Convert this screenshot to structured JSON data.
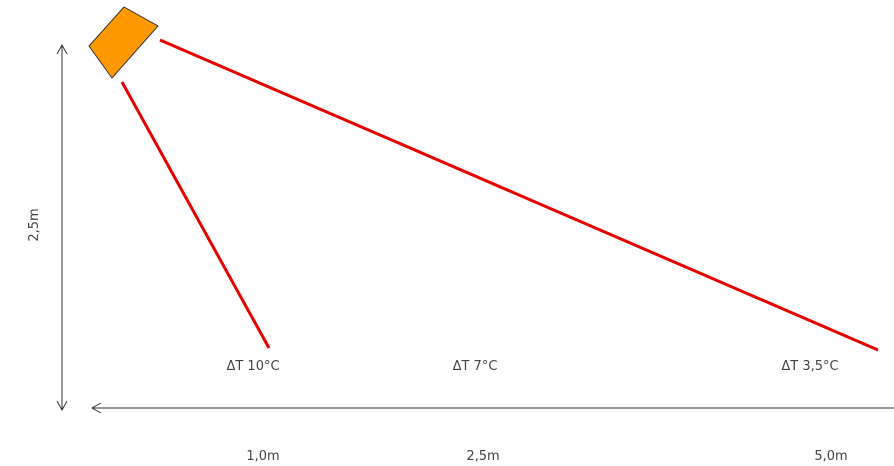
{
  "labels": {
    "height": "2,5m",
    "dt_near": "ΔT 10°C",
    "dt_mid": "ΔT 7°C",
    "dt_far": "ΔT 3,5°C",
    "dist_near": "1,0m",
    "dist_mid": "2,5m",
    "dist_far": "5,0m"
  },
  "colors": {
    "beam": "#e60000",
    "sensor_fill": "#ff9900",
    "sensor_stroke": "#333333",
    "axis": "#333333",
    "text": "#444444"
  }
}
